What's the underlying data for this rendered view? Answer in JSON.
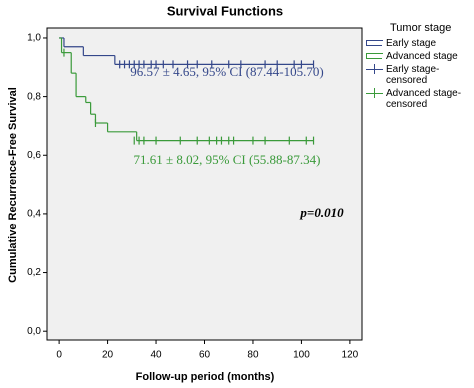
{
  "chart_data": {
    "type": "survival",
    "title": "Survival Functions",
    "x_label": "Follow-up period (months)",
    "y_label": "Cumulative Recurrence-Free Survival",
    "xlim": [
      -5,
      125
    ],
    "xticks": [
      0,
      20,
      40,
      60,
      80,
      100,
      120
    ],
    "ylim": [
      -0.03,
      1.034
    ],
    "yticks": [
      {
        "value": 0,
        "label": "0,0"
      },
      {
        "value": 0.2,
        "label": "0,2"
      },
      {
        "value": 0.4,
        "label": "0,4"
      },
      {
        "value": 0.6,
        "label": "0,6"
      },
      {
        "value": 0.8,
        "label": "0,8"
      },
      {
        "value": 1,
        "label": "1,0"
      }
    ],
    "legend_title": "Tumor stage",
    "series": [
      {
        "name": "Early stage",
        "censored_name": "Early stage-censored",
        "color": "#34478a",
        "x": [
          0,
          2,
          10,
          23,
          105
        ],
        "values": [
          1,
          0.97,
          0.94,
          0.91,
          0.91
        ],
        "censored_x": [
          25,
          27,
          29,
          31,
          33,
          35,
          38,
          40,
          43,
          47,
          53,
          57,
          63,
          70,
          75,
          85,
          90,
          97,
          100,
          105
        ],
        "censored_y": [
          0.91,
          0.91,
          0.91,
          0.91,
          0.91,
          0.91,
          0.91,
          0.91,
          0.91,
          0.91,
          0.91,
          0.91,
          0.91,
          0.91,
          0.91,
          0.91,
          0.91,
          0.91,
          0.91,
          0.91
        ],
        "annotation": "96.57 ± 4.65, 95% CI (87.44-105.70)"
      },
      {
        "name": "Advanced stage",
        "censored_name": "Advanced stage-censored",
        "color": "#3a9a3a",
        "x": [
          0,
          1,
          5,
          7,
          11,
          13,
          15,
          20,
          32,
          105
        ],
        "values": [
          1,
          0.95,
          0.88,
          0.8,
          0.78,
          0.74,
          0.71,
          0.68,
          0.65,
          0.65
        ],
        "censored_x": [
          2,
          15,
          31,
          33,
          35,
          40,
          50,
          57,
          62,
          65,
          67,
          70,
          72,
          80,
          85,
          95,
          102,
          105
        ],
        "censored_y": [
          0.95,
          0.71,
          0.65,
          0.65,
          0.65,
          0.65,
          0.65,
          0.65,
          0.65,
          0.65,
          0.65,
          0.65,
          0.65,
          0.65,
          0.65,
          0.65,
          0.65,
          0.65
        ],
        "annotation": "71.61 ± 8.02, 95% CI (55.88-87.34)"
      }
    ],
    "p_value": "p=0.010"
  }
}
